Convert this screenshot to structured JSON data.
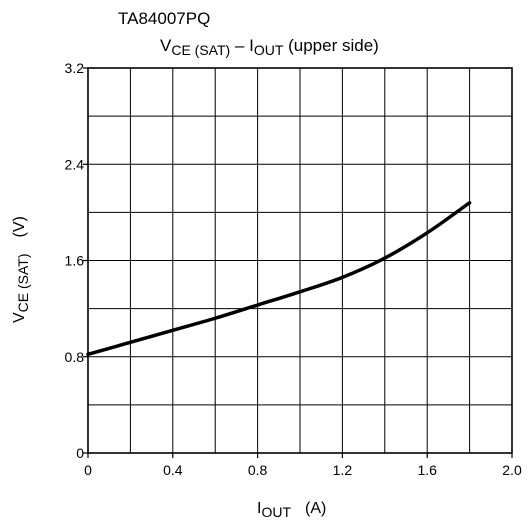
{
  "chart_data": {
    "type": "line",
    "device": "TA84007PQ",
    "title": {
      "v": "V",
      "v_sub": "CE (SAT)",
      "dash": " – I",
      "i_sub": "OUT",
      "rest": " (upper side)"
    },
    "xlabel": {
      "main": "I",
      "sub": "OUT",
      "unit": "(A)"
    },
    "ylabel": {
      "main": "V",
      "sub": "CE (SAT)",
      "unit": "(V)"
    },
    "xlim": [
      0,
      2.0
    ],
    "ylim": [
      0,
      3.2
    ],
    "x_major_ticks": [
      0,
      0.4,
      0.8,
      1.2,
      1.6,
      2.0
    ],
    "x_tick_labels": [
      "0",
      "0.4",
      "0.8",
      "1.2",
      "1.6",
      "2.0"
    ],
    "y_major_ticks": [
      0,
      0.8,
      1.6,
      2.4,
      3.2
    ],
    "y_tick_labels": [
      "0",
      "0.8",
      "1.6",
      "2.4",
      "3.2"
    ],
    "x_grid_step": 0.2,
    "y_grid_step": 0.4,
    "grid": true,
    "series": [
      {
        "x": [
          0,
          0.2,
          0.4,
          0.6,
          0.8,
          1.0,
          1.2,
          1.4,
          1.6,
          1.8
        ],
        "y": [
          0.82,
          0.92,
          1.02,
          1.12,
          1.23,
          1.34,
          1.46,
          1.62,
          1.83,
          2.08
        ]
      }
    ],
    "line_color": "#000000"
  }
}
